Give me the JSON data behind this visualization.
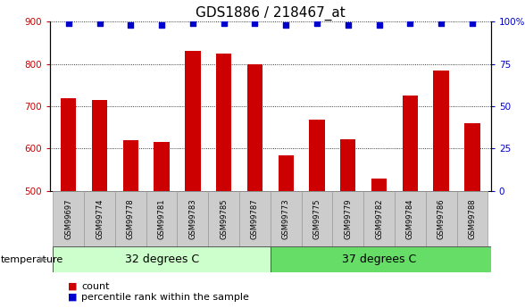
{
  "title": "GDS1886 / 218467_at",
  "categories": [
    "GSM99697",
    "GSM99774",
    "GSM99778",
    "GSM99781",
    "GSM99783",
    "GSM99785",
    "GSM99787",
    "GSM99773",
    "GSM99775",
    "GSM99779",
    "GSM99782",
    "GSM99784",
    "GSM99786",
    "GSM99788"
  ],
  "bar_values": [
    720,
    715,
    620,
    615,
    830,
    825,
    800,
    585,
    668,
    622,
    530,
    725,
    785,
    660
  ],
  "percentile_values": [
    99,
    99,
    98,
    98,
    99,
    99,
    99,
    98,
    99,
    98,
    98,
    99,
    99,
    99
  ],
  "bar_color": "#cc0000",
  "percentile_color": "#0000cc",
  "ylim_left": [
    500,
    900
  ],
  "ylim_right": [
    0,
    100
  ],
  "yticks_left": [
    500,
    600,
    700,
    800,
    900
  ],
  "yticks_right": [
    0,
    25,
    50,
    75,
    100
  ],
  "group1_label": "32 degrees C",
  "group2_label": "37 degrees C",
  "group1_count": 7,
  "group2_count": 7,
  "group1_color": "#ccffcc",
  "group2_color": "#66dd66",
  "group_header": "temperature",
  "xlabel_color": "#cc0000",
  "ylabel_right_color": "#0000cc",
  "background_color": "#ffffff",
  "tick_area_color": "#cccccc",
  "legend_count_label": "count",
  "legend_percentile_label": "percentile rank within the sample",
  "title_fontsize": 11,
  "axis_fontsize": 9,
  "tick_label_fontsize": 7.5
}
